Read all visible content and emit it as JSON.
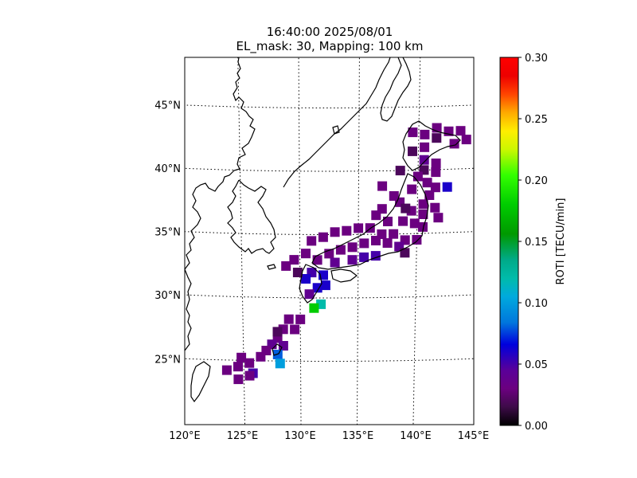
{
  "title": {
    "line1": "16:40:00 2025/08/01",
    "line2": "EL_mask: 30, Mapping: 100 km"
  },
  "map": {
    "lon_range": [
      120,
      145
    ],
    "lat_range": [
      20,
      49
    ],
    "lon_ticks": [
      "120°E",
      "125°E",
      "130°E",
      "135°E",
      "140°E",
      "145°E"
    ],
    "lat_ticks": [
      "25°N",
      "30°N",
      "35°N",
      "40°N",
      "45°N"
    ],
    "gridlines": "dotted",
    "coastlines": true
  },
  "colorbar": {
    "label": "ROTI [TECU/min]",
    "min": 0.0,
    "max": 0.3,
    "ticks": [
      "0.00",
      "0.05",
      "0.10",
      "0.15",
      "0.20",
      "0.25",
      "0.30"
    ],
    "colormap": "nipy_spectral"
  },
  "chart_data": {
    "type": "heatmap",
    "title": "16:40:00 2025/08/01 EL_mask: 30, Mapping: 100 km",
    "value_label": "ROTI [TECU/min]",
    "value_range": [
      0.0,
      0.3
    ],
    "cells": [
      [
        141.5,
        43.3,
        0.03
      ],
      [
        142.5,
        43.0,
        0.03
      ],
      [
        143.5,
        43.0,
        0.03
      ],
      [
        144.0,
        42.3,
        0.03
      ],
      [
        143.0,
        42.0,
        0.03
      ],
      [
        141.5,
        42.5,
        0.02
      ],
      [
        140.5,
        42.8,
        0.03
      ],
      [
        139.5,
        43.0,
        0.03
      ],
      [
        140.5,
        41.8,
        0.03
      ],
      [
        139.5,
        41.5,
        0.02
      ],
      [
        140.5,
        40.8,
        0.04
      ],
      [
        141.5,
        40.5,
        0.03
      ],
      [
        140.5,
        40.0,
        0.02
      ],
      [
        141.5,
        39.8,
        0.03
      ],
      [
        140.8,
        39.0,
        0.03
      ],
      [
        141.5,
        38.6,
        0.03
      ],
      [
        142.5,
        38.6,
        0.06
      ],
      [
        141.0,
        38.0,
        0.03
      ],
      [
        140.5,
        37.3,
        0.03
      ],
      [
        141.5,
        37.0,
        0.03
      ],
      [
        140.5,
        36.5,
        0.03
      ],
      [
        139.5,
        36.8,
        0.03
      ],
      [
        139.8,
        35.8,
        0.03
      ],
      [
        140.5,
        35.5,
        0.03
      ],
      [
        138.8,
        36.0,
        0.03
      ],
      [
        139.5,
        38.5,
        0.03
      ],
      [
        138.5,
        37.5,
        0.03
      ],
      [
        138.0,
        38.0,
        0.03
      ],
      [
        137.0,
        37.0,
        0.03
      ],
      [
        136.5,
        36.5,
        0.03
      ],
      [
        137.5,
        36.0,
        0.03
      ],
      [
        138.0,
        35.0,
        0.03
      ],
      [
        139.0,
        34.5,
        0.03
      ],
      [
        140.0,
        34.5,
        0.03
      ],
      [
        137.0,
        35.0,
        0.03
      ],
      [
        136.0,
        35.5,
        0.03
      ],
      [
        135.0,
        35.5,
        0.03
      ],
      [
        134.0,
        35.3,
        0.03
      ],
      [
        133.0,
        35.2,
        0.03
      ],
      [
        132.0,
        34.8,
        0.03
      ],
      [
        131.0,
        34.5,
        0.03
      ],
      [
        130.5,
        33.5,
        0.03
      ],
      [
        129.5,
        33.0,
        0.03
      ],
      [
        131.5,
        33.0,
        0.03
      ],
      [
        132.5,
        33.5,
        0.03
      ],
      [
        133.5,
        33.8,
        0.03
      ],
      [
        134.5,
        34.0,
        0.03
      ],
      [
        135.5,
        34.3,
        0.03
      ],
      [
        136.5,
        34.5,
        0.03
      ],
      [
        137.5,
        34.3,
        0.03
      ],
      [
        133.0,
        32.8,
        0.04
      ],
      [
        134.5,
        33.0,
        0.04
      ],
      [
        135.5,
        33.2,
        0.05
      ],
      [
        136.5,
        33.3,
        0.05
      ],
      [
        138.5,
        34.0,
        0.04
      ],
      [
        131.0,
        32.0,
        0.05
      ],
      [
        132.0,
        31.8,
        0.06
      ],
      [
        130.5,
        31.5,
        0.06
      ],
      [
        131.5,
        30.8,
        0.06
      ],
      [
        130.8,
        30.3,
        0.04
      ],
      [
        132.2,
        31.0,
        0.06
      ],
      [
        131.8,
        29.5,
        0.12
      ],
      [
        131.2,
        29.2,
        0.18
      ],
      [
        129.8,
        32.0,
        0.02
      ],
      [
        128.8,
        32.5,
        0.03
      ],
      [
        129.0,
        28.3,
        0.03
      ],
      [
        130.0,
        28.3,
        0.03
      ],
      [
        128.5,
        27.5,
        0.03
      ],
      [
        129.5,
        27.5,
        0.03
      ],
      [
        128.0,
        26.8,
        0.03
      ],
      [
        127.5,
        26.3,
        0.04
      ],
      [
        128.5,
        26.2,
        0.04
      ],
      [
        127.0,
        25.8,
        0.03
      ],
      [
        128.0,
        25.5,
        0.08
      ],
      [
        128.2,
        24.8,
        0.1
      ],
      [
        126.5,
        25.3,
        0.03
      ],
      [
        125.5,
        24.8,
        0.03
      ],
      [
        124.5,
        24.5,
        0.03
      ],
      [
        125.8,
        24.0,
        0.05
      ],
      [
        123.5,
        24.2,
        0.03
      ],
      [
        124.5,
        23.5,
        0.03
      ],
      [
        125.5,
        23.8,
        0.03
      ],
      [
        124.8,
        25.2,
        0.03
      ],
      [
        128.0,
        27.3,
        0.02
      ],
      [
        139.0,
        33.5,
        0.02
      ],
      [
        138.5,
        40.0,
        0.02
      ],
      [
        137.0,
        38.8,
        0.03
      ],
      [
        139.0,
        37.0,
        0.02
      ],
      [
        140.0,
        39.5,
        0.03
      ],
      [
        141.8,
        36.2,
        0.03
      ]
    ]
  }
}
